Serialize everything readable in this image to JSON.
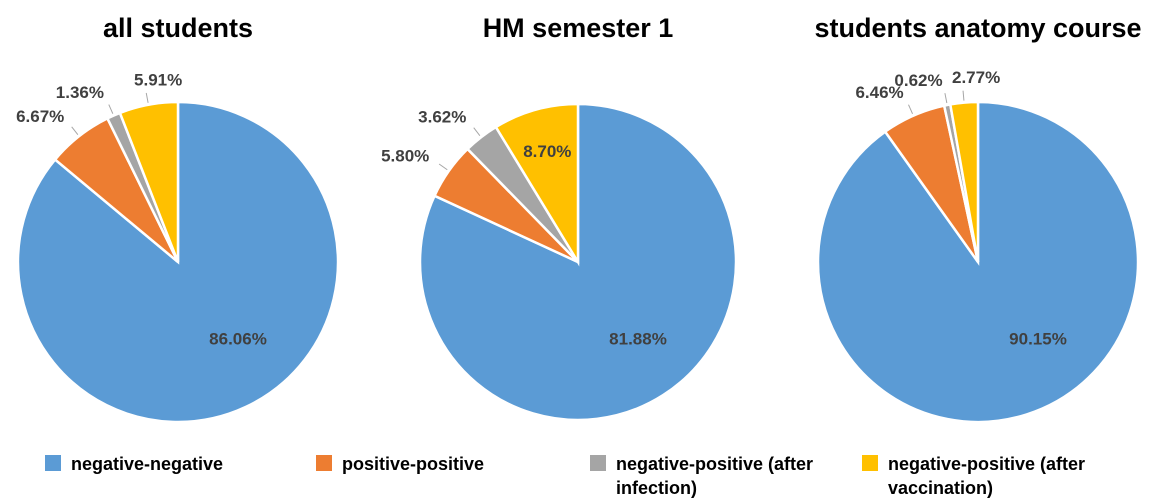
{
  "chart_data": [
    {
      "type": "pie",
      "title": "all students",
      "values": [
        86.06,
        6.67,
        1.36,
        5.91
      ],
      "value_labels": [
        "86.06%",
        "6.67%",
        "1.36%",
        "5.91%"
      ]
    },
    {
      "type": "pie",
      "title": "HM semester 1",
      "values": [
        81.88,
        5.8,
        3.62,
        8.7
      ],
      "value_labels": [
        "81.88%",
        "5.80%",
        "3.62%",
        "8.70%"
      ]
    },
    {
      "type": "pie",
      "title": "students anatomy course",
      "values": [
        90.15,
        6.46,
        0.62,
        2.77
      ],
      "value_labels": [
        "90.15%",
        "6.46%",
        "0.62%",
        "2.77%"
      ]
    }
  ],
  "legend": {
    "labels": [
      "negative-negative",
      "positive-positive",
      "negative-positive (after infection)",
      "negative-positive (after vaccination)"
    ],
    "colors": [
      "#5b9bd5",
      "#ed7d31",
      "#a5a5a5",
      "#ffc000"
    ]
  }
}
